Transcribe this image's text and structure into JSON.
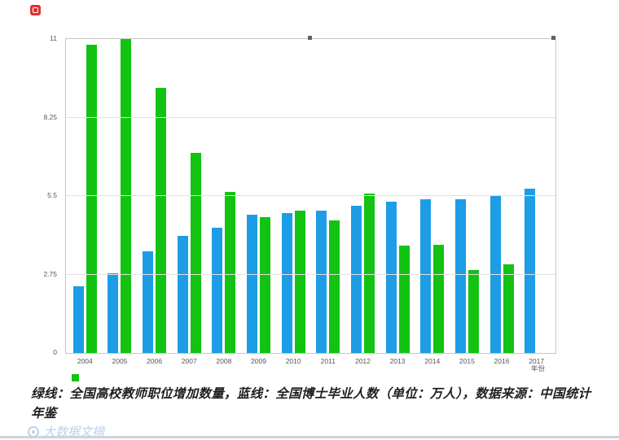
{
  "chart_data": {
    "type": "bar",
    "categories": [
      "2004",
      "2005",
      "2006",
      "2007",
      "2008",
      "2009",
      "2010",
      "2011",
      "2012",
      "2013",
      "2014",
      "2015",
      "2016",
      "2017"
    ],
    "series": [
      {
        "name": "全国博士毕业人数（万人）",
        "color": "#1d9de5",
        "values": [
          2.35,
          2.8,
          3.55,
          4.1,
          4.4,
          4.85,
          4.9,
          5.0,
          5.15,
          5.3,
          5.4,
          5.4,
          5.5,
          5.75
        ]
      },
      {
        "name": "全国高校教师职位增加数量（万人）",
        "color": "#12c312",
        "values": [
          10.8,
          11,
          9.3,
          7.0,
          5.65,
          4.75,
          5.0,
          4.65,
          5.6,
          3.75,
          3.8,
          2.9,
          3.1,
          null
        ]
      }
    ],
    "title": "",
    "xlabel": "年份",
    "ylabel": "",
    "ylim": [
      0,
      11
    ],
    "yticks": [
      0,
      2.75,
      5.5,
      8.25,
      11
    ],
    "grid": true,
    "legend_position": "none"
  },
  "axis": {
    "xlabel": "年份"
  },
  "caption": {
    "text": "绿线：全国高校教师职位增加数量，蓝线：全国博士毕业人数（单位：万人），数据来源：中国统计年鉴"
  },
  "watermark": {
    "text": "大数据文摘"
  },
  "colors": {
    "blue_bar": "#1d9de5",
    "green_bar": "#12c312",
    "logo_red": "#e03131"
  }
}
